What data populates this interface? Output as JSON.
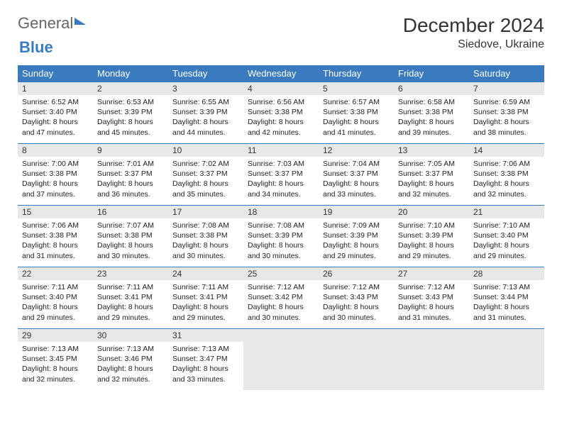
{
  "logo": {
    "general": "General",
    "blue": "Blue"
  },
  "title": "December 2024",
  "location": "Siedove, Ukraine",
  "colors": {
    "header_bg": "#3a7bbf",
    "header_text": "#ffffff",
    "daynum_bg": "#e8e8e8",
    "rule": "#3a7bbf",
    "text": "#222222",
    "logo_gray": "#666666",
    "logo_blue": "#3a7bbf",
    "background": "#ffffff"
  },
  "typography": {
    "title_fontsize": 28,
    "location_fontsize": 16,
    "dayhead_fontsize": 13,
    "daynum_fontsize": 12,
    "body_fontsize": 10.5
  },
  "day_names": [
    "Sunday",
    "Monday",
    "Tuesday",
    "Wednesday",
    "Thursday",
    "Friday",
    "Saturday"
  ],
  "weeks": [
    [
      {
        "n": "1",
        "sr": "Sunrise: 6:52 AM",
        "ss": "Sunset: 3:40 PM",
        "d1": "Daylight: 8 hours",
        "d2": "and 47 minutes."
      },
      {
        "n": "2",
        "sr": "Sunrise: 6:53 AM",
        "ss": "Sunset: 3:39 PM",
        "d1": "Daylight: 8 hours",
        "d2": "and 45 minutes."
      },
      {
        "n": "3",
        "sr": "Sunrise: 6:55 AM",
        "ss": "Sunset: 3:39 PM",
        "d1": "Daylight: 8 hours",
        "d2": "and 44 minutes."
      },
      {
        "n": "4",
        "sr": "Sunrise: 6:56 AM",
        "ss": "Sunset: 3:38 PM",
        "d1": "Daylight: 8 hours",
        "d2": "and 42 minutes."
      },
      {
        "n": "5",
        "sr": "Sunrise: 6:57 AM",
        "ss": "Sunset: 3:38 PM",
        "d1": "Daylight: 8 hours",
        "d2": "and 41 minutes."
      },
      {
        "n": "6",
        "sr": "Sunrise: 6:58 AM",
        "ss": "Sunset: 3:38 PM",
        "d1": "Daylight: 8 hours",
        "d2": "and 39 minutes."
      },
      {
        "n": "7",
        "sr": "Sunrise: 6:59 AM",
        "ss": "Sunset: 3:38 PM",
        "d1": "Daylight: 8 hours",
        "d2": "and 38 minutes."
      }
    ],
    [
      {
        "n": "8",
        "sr": "Sunrise: 7:00 AM",
        "ss": "Sunset: 3:38 PM",
        "d1": "Daylight: 8 hours",
        "d2": "and 37 minutes."
      },
      {
        "n": "9",
        "sr": "Sunrise: 7:01 AM",
        "ss": "Sunset: 3:37 PM",
        "d1": "Daylight: 8 hours",
        "d2": "and 36 minutes."
      },
      {
        "n": "10",
        "sr": "Sunrise: 7:02 AM",
        "ss": "Sunset: 3:37 PM",
        "d1": "Daylight: 8 hours",
        "d2": "and 35 minutes."
      },
      {
        "n": "11",
        "sr": "Sunrise: 7:03 AM",
        "ss": "Sunset: 3:37 PM",
        "d1": "Daylight: 8 hours",
        "d2": "and 34 minutes."
      },
      {
        "n": "12",
        "sr": "Sunrise: 7:04 AM",
        "ss": "Sunset: 3:37 PM",
        "d1": "Daylight: 8 hours",
        "d2": "and 33 minutes."
      },
      {
        "n": "13",
        "sr": "Sunrise: 7:05 AM",
        "ss": "Sunset: 3:37 PM",
        "d1": "Daylight: 8 hours",
        "d2": "and 32 minutes."
      },
      {
        "n": "14",
        "sr": "Sunrise: 7:06 AM",
        "ss": "Sunset: 3:38 PM",
        "d1": "Daylight: 8 hours",
        "d2": "and 32 minutes."
      }
    ],
    [
      {
        "n": "15",
        "sr": "Sunrise: 7:06 AM",
        "ss": "Sunset: 3:38 PM",
        "d1": "Daylight: 8 hours",
        "d2": "and 31 minutes."
      },
      {
        "n": "16",
        "sr": "Sunrise: 7:07 AM",
        "ss": "Sunset: 3:38 PM",
        "d1": "Daylight: 8 hours",
        "d2": "and 30 minutes."
      },
      {
        "n": "17",
        "sr": "Sunrise: 7:08 AM",
        "ss": "Sunset: 3:38 PM",
        "d1": "Daylight: 8 hours",
        "d2": "and 30 minutes."
      },
      {
        "n": "18",
        "sr": "Sunrise: 7:08 AM",
        "ss": "Sunset: 3:39 PM",
        "d1": "Daylight: 8 hours",
        "d2": "and 30 minutes."
      },
      {
        "n": "19",
        "sr": "Sunrise: 7:09 AM",
        "ss": "Sunset: 3:39 PM",
        "d1": "Daylight: 8 hours",
        "d2": "and 29 minutes."
      },
      {
        "n": "20",
        "sr": "Sunrise: 7:10 AM",
        "ss": "Sunset: 3:39 PM",
        "d1": "Daylight: 8 hours",
        "d2": "and 29 minutes."
      },
      {
        "n": "21",
        "sr": "Sunrise: 7:10 AM",
        "ss": "Sunset: 3:40 PM",
        "d1": "Daylight: 8 hours",
        "d2": "and 29 minutes."
      }
    ],
    [
      {
        "n": "22",
        "sr": "Sunrise: 7:11 AM",
        "ss": "Sunset: 3:40 PM",
        "d1": "Daylight: 8 hours",
        "d2": "and 29 minutes."
      },
      {
        "n": "23",
        "sr": "Sunrise: 7:11 AM",
        "ss": "Sunset: 3:41 PM",
        "d1": "Daylight: 8 hours",
        "d2": "and 29 minutes."
      },
      {
        "n": "24",
        "sr": "Sunrise: 7:11 AM",
        "ss": "Sunset: 3:41 PM",
        "d1": "Daylight: 8 hours",
        "d2": "and 29 minutes."
      },
      {
        "n": "25",
        "sr": "Sunrise: 7:12 AM",
        "ss": "Sunset: 3:42 PM",
        "d1": "Daylight: 8 hours",
        "d2": "and 30 minutes."
      },
      {
        "n": "26",
        "sr": "Sunrise: 7:12 AM",
        "ss": "Sunset: 3:43 PM",
        "d1": "Daylight: 8 hours",
        "d2": "and 30 minutes."
      },
      {
        "n": "27",
        "sr": "Sunrise: 7:12 AM",
        "ss": "Sunset: 3:43 PM",
        "d1": "Daylight: 8 hours",
        "d2": "and 31 minutes."
      },
      {
        "n": "28",
        "sr": "Sunrise: 7:13 AM",
        "ss": "Sunset: 3:44 PM",
        "d1": "Daylight: 8 hours",
        "d2": "and 31 minutes."
      }
    ],
    [
      {
        "n": "29",
        "sr": "Sunrise: 7:13 AM",
        "ss": "Sunset: 3:45 PM",
        "d1": "Daylight: 8 hours",
        "d2": "and 32 minutes."
      },
      {
        "n": "30",
        "sr": "Sunrise: 7:13 AM",
        "ss": "Sunset: 3:46 PM",
        "d1": "Daylight: 8 hours",
        "d2": "and 32 minutes."
      },
      {
        "n": "31",
        "sr": "Sunrise: 7:13 AM",
        "ss": "Sunset: 3:47 PM",
        "d1": "Daylight: 8 hours",
        "d2": "and 33 minutes."
      },
      null,
      null,
      null,
      null
    ]
  ]
}
